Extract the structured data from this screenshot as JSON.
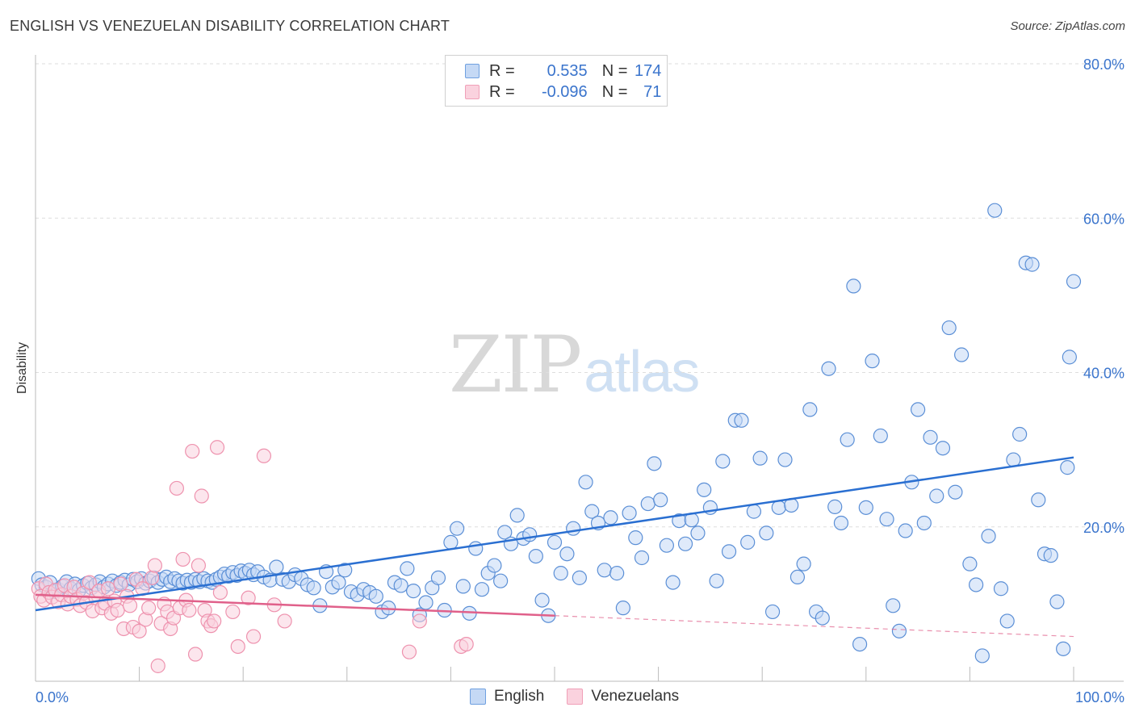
{
  "title": "ENGLISH VS VENEZUELAN DISABILITY CORRELATION CHART",
  "source": "Source: ZipAtlas.com",
  "watermark": {
    "zip": "ZIP",
    "atlas": "atlas"
  },
  "legend": {
    "rows": [
      {
        "r_label": "R =",
        "r_value": "0.535",
        "n_label": "N =",
        "n_value": "174",
        "color": "#6fa0e0",
        "fill": "#c5d9f5"
      },
      {
        "r_label": "R =",
        "r_value": "-0.096",
        "n_label": "N =",
        "n_value": "71",
        "color": "#f0a0b8",
        "fill": "#fad2de"
      }
    ]
  },
  "bottom_legend": [
    {
      "label": "English",
      "color": "#6fa0e0",
      "fill": "#c5d9f5"
    },
    {
      "label": "Venezuelans",
      "color": "#f0a0b8",
      "fill": "#fad2de"
    }
  ],
  "chart_data": {
    "type": "scatter",
    "title": "ENGLISH VS VENEZUELAN DISABILITY CORRELATION CHART",
    "xlabel": "",
    "ylabel": "Disability",
    "xlim": [
      0,
      100
    ],
    "ylim": [
      0,
      80
    ],
    "x_tick_labels": [
      "0.0%",
      "100.0%"
    ],
    "y_ticks": [
      20,
      40,
      60,
      80
    ],
    "y_tick_labels": [
      "20.0%",
      "40.0%",
      "60.0%",
      "80.0%"
    ],
    "grid": true,
    "legend_position": "top-center",
    "series": [
      {
        "name": "English",
        "color": "#5b8fd6",
        "fill": "#c5d9f5",
        "trend": {
          "x": [
            0,
            100
          ],
          "y": [
            9.2,
            29.0
          ],
          "color": "#2a6fd1",
          "dashed_from": null
        },
        "points": [
          [
            0.3,
            13.3
          ],
          [
            0.6,
            12.5
          ],
          [
            1.0,
            12.2
          ],
          [
            1.4,
            12.8
          ],
          [
            1.8,
            11.6
          ],
          [
            2.2,
            11.9
          ],
          [
            2.6,
            12.3
          ],
          [
            3.0,
            12.9
          ],
          [
            3.4,
            12.0
          ],
          [
            3.8,
            12.6
          ],
          [
            4.2,
            11.8
          ],
          [
            4.6,
            12.4
          ],
          [
            5.0,
            12.7
          ],
          [
            5.4,
            12.1
          ],
          [
            5.8,
            12.5
          ],
          [
            6.2,
            12.9
          ],
          [
            6.6,
            12.2
          ],
          [
            7.0,
            12.6
          ],
          [
            7.4,
            13.0
          ],
          [
            7.8,
            12.4
          ],
          [
            8.2,
            12.8
          ],
          [
            8.6,
            13.1
          ],
          [
            9.0,
            12.5
          ],
          [
            9.4,
            13.2
          ],
          [
            9.8,
            12.9
          ],
          [
            10.2,
            13.3
          ],
          [
            10.6,
            12.7
          ],
          [
            11.0,
            13.0
          ],
          [
            11.4,
            13.4
          ],
          [
            11.8,
            12.8
          ],
          [
            12.2,
            13.2
          ],
          [
            12.6,
            13.5
          ],
          [
            13.0,
            12.9
          ],
          [
            13.4,
            13.3
          ],
          [
            13.8,
            13.0
          ],
          [
            14.2,
            12.7
          ],
          [
            14.6,
            13.1
          ],
          [
            15.0,
            12.8
          ],
          [
            15.4,
            13.2
          ],
          [
            15.8,
            12.9
          ],
          [
            16.2,
            13.3
          ],
          [
            16.6,
            13.0
          ],
          [
            17.0,
            12.8
          ],
          [
            17.4,
            13.2
          ],
          [
            17.8,
            13.5
          ],
          [
            18.2,
            13.9
          ],
          [
            18.6,
            13.6
          ],
          [
            19.0,
            14.1
          ],
          [
            19.4,
            13.7
          ],
          [
            19.8,
            14.3
          ],
          [
            20.2,
            14.0
          ],
          [
            20.6,
            14.4
          ],
          [
            21.0,
            13.8
          ],
          [
            21.4,
            14.2
          ],
          [
            22.0,
            13.5
          ],
          [
            22.6,
            13.1
          ],
          [
            23.2,
            14.8
          ],
          [
            23.8,
            13.2
          ],
          [
            24.4,
            12.9
          ],
          [
            25.0,
            13.8
          ],
          [
            25.6,
            13.3
          ],
          [
            26.2,
            12.5
          ],
          [
            26.8,
            12.1
          ],
          [
            27.4,
            9.8
          ],
          [
            28.0,
            14.2
          ],
          [
            28.6,
            12.2
          ],
          [
            29.2,
            12.8
          ],
          [
            29.8,
            14.4
          ],
          [
            30.4,
            11.6
          ],
          [
            31.0,
            11.2
          ],
          [
            31.6,
            11.9
          ],
          [
            32.2,
            11.5
          ],
          [
            32.8,
            11.0
          ],
          [
            33.4,
            9.0
          ],
          [
            34.0,
            9.5
          ],
          [
            34.6,
            12.8
          ],
          [
            35.2,
            12.4
          ],
          [
            35.8,
            14.6
          ],
          [
            36.4,
            11.7
          ],
          [
            37.0,
            8.6
          ],
          [
            37.6,
            10.2
          ],
          [
            38.2,
            12.1
          ],
          [
            38.8,
            13.4
          ],
          [
            39.4,
            9.2
          ],
          [
            40.0,
            18.0
          ],
          [
            40.6,
            19.8
          ],
          [
            41.2,
            12.3
          ],
          [
            41.8,
            8.8
          ],
          [
            42.4,
            17.2
          ],
          [
            43.0,
            11.9
          ],
          [
            43.6,
            14.0
          ],
          [
            44.2,
            15.0
          ],
          [
            44.8,
            13.0
          ],
          [
            45.2,
            19.3
          ],
          [
            45.8,
            17.8
          ],
          [
            46.4,
            21.5
          ],
          [
            47.0,
            18.5
          ],
          [
            47.6,
            19.0
          ],
          [
            48.2,
            16.2
          ],
          [
            48.8,
            10.5
          ],
          [
            49.4,
            8.5
          ],
          [
            50.0,
            18.0
          ],
          [
            50.6,
            14.0
          ],
          [
            51.2,
            16.5
          ],
          [
            51.8,
            19.8
          ],
          [
            52.4,
            13.4
          ],
          [
            53.0,
            25.8
          ],
          [
            53.6,
            22.0
          ],
          [
            54.2,
            20.5
          ],
          [
            54.8,
            14.4
          ],
          [
            55.4,
            21.2
          ],
          [
            56.0,
            14.0
          ],
          [
            56.6,
            9.5
          ],
          [
            57.2,
            21.8
          ],
          [
            57.8,
            18.6
          ],
          [
            58.4,
            16.0
          ],
          [
            59.0,
            23.0
          ],
          [
            59.6,
            28.2
          ],
          [
            60.2,
            23.5
          ],
          [
            60.8,
            17.6
          ],
          [
            61.4,
            12.8
          ],
          [
            62.0,
            20.8
          ],
          [
            62.6,
            17.8
          ],
          [
            63.2,
            20.9
          ],
          [
            63.8,
            19.2
          ],
          [
            64.4,
            24.8
          ],
          [
            65.0,
            22.5
          ],
          [
            65.6,
            13.0
          ],
          [
            66.2,
            28.5
          ],
          [
            66.8,
            16.8
          ],
          [
            67.4,
            33.8
          ],
          [
            68.0,
            33.8
          ],
          [
            68.6,
            18.0
          ],
          [
            69.2,
            22.0
          ],
          [
            69.8,
            28.9
          ],
          [
            70.4,
            19.2
          ],
          [
            71.0,
            9.0
          ],
          [
            71.6,
            22.5
          ],
          [
            72.2,
            28.7
          ],
          [
            72.8,
            22.8
          ],
          [
            73.4,
            13.5
          ],
          [
            74.0,
            15.2
          ],
          [
            74.6,
            35.2
          ],
          [
            75.2,
            9.0
          ],
          [
            75.8,
            8.2
          ],
          [
            76.4,
            40.5
          ],
          [
            77.0,
            22.6
          ],
          [
            77.6,
            20.5
          ],
          [
            78.2,
            31.3
          ],
          [
            78.8,
            51.2
          ],
          [
            79.4,
            4.8
          ],
          [
            80.0,
            22.5
          ],
          [
            80.6,
            41.5
          ],
          [
            81.4,
            31.8
          ],
          [
            82.0,
            21.0
          ],
          [
            82.6,
            9.8
          ],
          [
            83.2,
            6.5
          ],
          [
            83.8,
            19.5
          ],
          [
            84.4,
            25.8
          ],
          [
            85.0,
            35.2
          ],
          [
            85.6,
            20.5
          ],
          [
            86.2,
            31.6
          ],
          [
            86.8,
            24.0
          ],
          [
            87.4,
            30.2
          ],
          [
            88.0,
            45.8
          ],
          [
            88.6,
            24.5
          ],
          [
            89.2,
            42.3
          ],
          [
            90.0,
            15.2
          ],
          [
            90.6,
            12.5
          ],
          [
            91.2,
            3.3
          ],
          [
            91.8,
            18.8
          ],
          [
            92.4,
            61.0
          ],
          [
            93.0,
            12.0
          ],
          [
            93.6,
            7.8
          ],
          [
            94.2,
            28.7
          ],
          [
            94.8,
            32.0
          ],
          [
            95.4,
            54.2
          ],
          [
            96.0,
            54.0
          ],
          [
            96.6,
            23.5
          ],
          [
            97.2,
            16.5
          ],
          [
            97.8,
            16.3
          ],
          [
            98.4,
            10.3
          ],
          [
            99.0,
            4.2
          ],
          [
            99.4,
            27.7
          ],
          [
            99.6,
            42.0
          ],
          [
            100.0,
            51.8
          ]
        ]
      },
      {
        "name": "Venezuelans",
        "color": "#ee92ae",
        "fill": "#fad2de",
        "trend": {
          "x": [
            0,
            100
          ],
          "y": [
            11.2,
            5.8
          ],
          "color": "#e0608a",
          "dashed_from": 50
        },
        "points": [
          [
            0.3,
            12.0
          ],
          [
            0.5,
            11.0
          ],
          [
            0.8,
            10.5
          ],
          [
            1.0,
            12.6
          ],
          [
            1.3,
            11.5
          ],
          [
            1.6,
            10.9
          ],
          [
            1.9,
            11.8
          ],
          [
            2.2,
            10.3
          ],
          [
            2.5,
            11.2
          ],
          [
            2.8,
            12.4
          ],
          [
            3.1,
            10.0
          ],
          [
            3.4,
            11.0
          ],
          [
            3.7,
            12.2
          ],
          [
            4.0,
            10.6
          ],
          [
            4.3,
            9.8
          ],
          [
            4.6,
            11.4
          ],
          [
            4.9,
            10.2
          ],
          [
            5.2,
            12.8
          ],
          [
            5.5,
            9.1
          ],
          [
            5.8,
            10.8
          ],
          [
            6.1,
            11.7
          ],
          [
            6.4,
            9.5
          ],
          [
            6.7,
            10.1
          ],
          [
            7.0,
            12.0
          ],
          [
            7.3,
            8.8
          ],
          [
            7.6,
            10.4
          ],
          [
            7.9,
            9.2
          ],
          [
            8.2,
            12.6
          ],
          [
            8.5,
            6.8
          ],
          [
            8.8,
            11.0
          ],
          [
            9.1,
            9.8
          ],
          [
            9.4,
            7.0
          ],
          [
            9.7,
            13.2
          ],
          [
            10.0,
            6.5
          ],
          [
            10.3,
            12.0
          ],
          [
            10.6,
            8.0
          ],
          [
            10.9,
            9.5
          ],
          [
            11.2,
            13.4
          ],
          [
            11.5,
            15.0
          ],
          [
            11.8,
            2.0
          ],
          [
            12.1,
            7.5
          ],
          [
            12.4,
            10.0
          ],
          [
            12.7,
            9.0
          ],
          [
            13.0,
            6.8
          ],
          [
            13.3,
            8.2
          ],
          [
            13.6,
            25.0
          ],
          [
            13.9,
            9.5
          ],
          [
            14.2,
            15.8
          ],
          [
            14.5,
            10.5
          ],
          [
            14.8,
            9.2
          ],
          [
            15.1,
            29.8
          ],
          [
            15.4,
            3.5
          ],
          [
            15.7,
            15.0
          ],
          [
            16.0,
            24.0
          ],
          [
            16.3,
            9.2
          ],
          [
            16.6,
            7.8
          ],
          [
            16.9,
            7.2
          ],
          [
            17.2,
            7.8
          ],
          [
            17.5,
            30.3
          ],
          [
            17.8,
            11.5
          ],
          [
            19.5,
            4.5
          ],
          [
            21.0,
            5.8
          ],
          [
            22.0,
            29.2
          ],
          [
            24.0,
            7.8
          ],
          [
            36.0,
            3.8
          ],
          [
            37.0,
            7.8
          ],
          [
            41.0,
            4.5
          ],
          [
            41.5,
            4.8
          ],
          [
            19.0,
            9.0
          ],
          [
            20.5,
            10.8
          ],
          [
            23.0,
            9.9
          ]
        ]
      }
    ]
  }
}
